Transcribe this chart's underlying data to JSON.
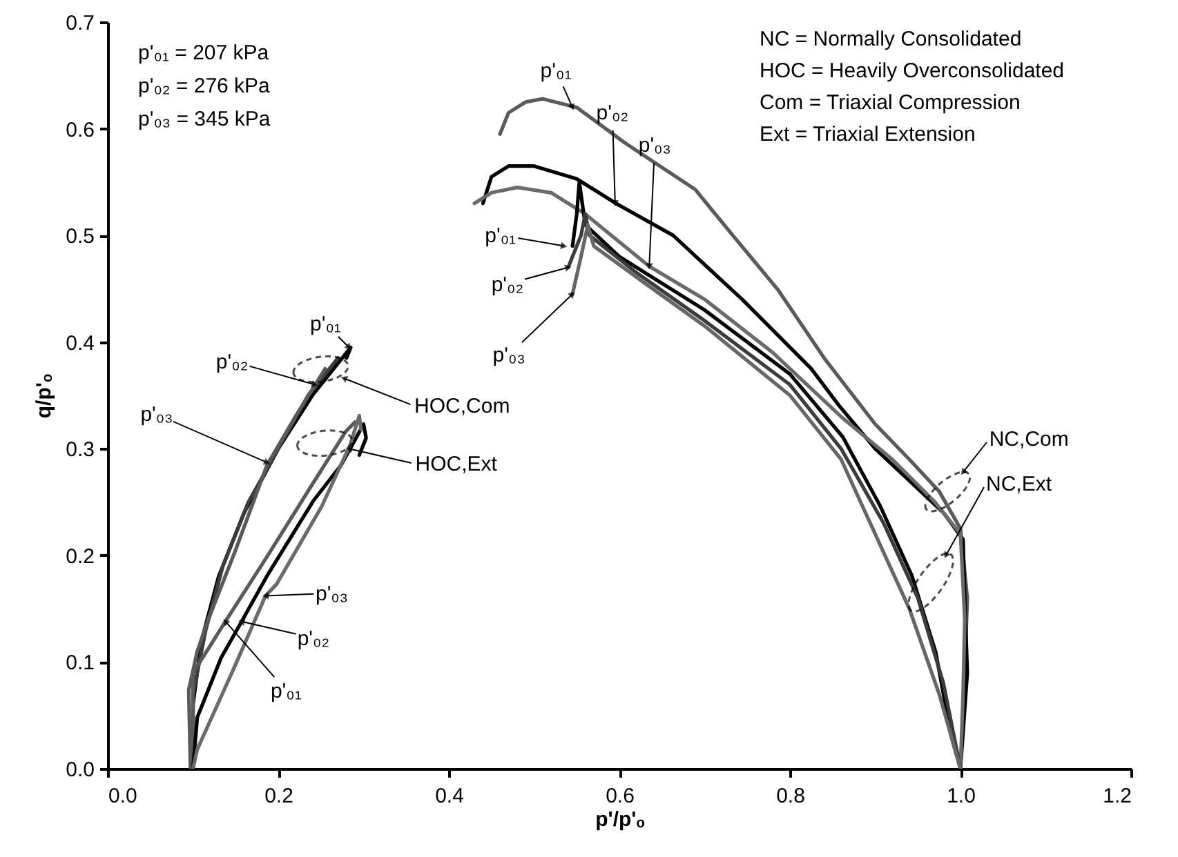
{
  "chart_data": {
    "type": "line",
    "xlabel": "p'/p'ₒ",
    "ylabel": "q/p'ₒ",
    "xlim": [
      0,
      1.2
    ],
    "ylim": [
      0,
      0.7
    ],
    "xticks": [
      {
        "value": 0,
        "label": "0.0"
      },
      {
        "value": 0.2,
        "label": "0.2"
      },
      {
        "value": 0.4,
        "label": "0.4"
      },
      {
        "value": 0.6,
        "label": "0.6"
      },
      {
        "value": 0.8,
        "label": "0.8"
      },
      {
        "value": 1,
        "label": "1.0"
      },
      {
        "value": 1.2,
        "label": "1.2"
      }
    ],
    "yticks": [
      {
        "value": 0,
        "label": "0.0"
      },
      {
        "value": 0.1,
        "label": "0.1"
      },
      {
        "value": 0.2,
        "label": "0.2"
      },
      {
        "value": 0.3,
        "label": "0.3"
      },
      {
        "value": 0.4,
        "label": "0.4"
      },
      {
        "value": 0.5,
        "label": "0.5"
      },
      {
        "value": 0.6,
        "label": "0.6"
      },
      {
        "value": 0.7,
        "label": "0.7"
      }
    ],
    "grid": false,
    "line_style": "solid",
    "series": [
      {
        "color": "#5a5a5a",
        "x": [
          0.46,
          0.47,
          0.49,
          0.51,
          0.55,
          0.606,
          0.689,
          0.733,
          0.786,
          0.841,
          0.9,
          0.94,
          0.975,
          1.0,
          1.008,
          1.005,
          1.0
        ],
        "values": [
          0.595,
          0.615,
          0.625,
          0.628,
          0.62,
          0.587,
          0.543,
          0.5,
          0.449,
          0.384,
          0.323,
          0.29,
          0.26,
          0.225,
          0.16,
          0.09,
          0.0
        ]
      },
      {
        "color": "#000000",
        "x": [
          0.44,
          0.45,
          0.47,
          0.5,
          0.55,
          0.598,
          0.663,
          0.744,
          0.825,
          0.857,
          0.9,
          0.94,
          0.98,
          1.003,
          1.005,
          1.008,
          1.0
        ],
        "values": [
          0.53,
          0.555,
          0.565,
          0.565,
          0.553,
          0.529,
          0.5,
          0.44,
          0.375,
          0.341,
          0.3,
          0.27,
          0.24,
          0.215,
          0.16,
          0.09,
          0.0
        ]
      },
      {
        "color": "#6a6a6a",
        "x": [
          0.43,
          0.45,
          0.48,
          0.52,
          0.56,
          0.635,
          0.7,
          0.78,
          0.86,
          0.92,
          0.97,
          1.0,
          1.005,
          1.003,
          1.0
        ],
        "values": [
          0.53,
          0.54,
          0.545,
          0.54,
          0.52,
          0.471,
          0.44,
          0.39,
          0.33,
          0.29,
          0.25,
          0.22,
          0.14,
          0.07,
          0.0
        ]
      },
      {
        "color": "#000000",
        "x": [
          0.545,
          0.55,
          0.553,
          0.56,
          0.6,
          0.7,
          0.8,
          0.862,
          0.906,
          0.943,
          0.971,
          0.989,
          1.0
        ],
        "values": [
          0.49,
          0.52,
          0.55,
          0.51,
          0.48,
          0.43,
          0.37,
          0.311,
          0.246,
          0.181,
          0.109,
          0.031,
          0.0
        ]
      },
      {
        "color": "#3c3c3c",
        "x": [
          0.54,
          0.555,
          0.56,
          0.565,
          0.62,
          0.7,
          0.8,
          0.86,
          0.91,
          0.95,
          0.98,
          1.0
        ],
        "values": [
          0.47,
          0.5,
          0.52,
          0.5,
          0.465,
          0.42,
          0.36,
          0.3,
          0.23,
          0.16,
          0.08,
          0.0
        ]
      },
      {
        "color": "#666666",
        "x": [
          0.545,
          0.555,
          0.563,
          0.57,
          0.63,
          0.7,
          0.8,
          0.86,
          0.9,
          0.94,
          0.975,
          1.0
        ],
        "values": [
          0.445,
          0.48,
          0.51,
          0.49,
          0.455,
          0.415,
          0.35,
          0.29,
          0.22,
          0.15,
          0.07,
          0.0
        ]
      },
      {
        "color": "#000000",
        "x": [
          0.1,
          0.1,
          0.11,
          0.13,
          0.16,
          0.2,
          0.24,
          0.285,
          0.28
        ],
        "values": [
          0.0,
          0.06,
          0.12,
          0.18,
          0.24,
          0.3,
          0.35,
          0.395,
          0.385
        ]
      },
      {
        "color": "#3c3c3c",
        "x": [
          0.1,
          0.1,
          0.115,
          0.135,
          0.165,
          0.2,
          0.235,
          0.27
        ],
        "values": [
          0.0,
          0.07,
          0.13,
          0.19,
          0.25,
          0.3,
          0.35,
          0.385
        ]
      },
      {
        "color": "#5a5a5a",
        "x": [
          0.097,
          0.095,
          0.105,
          0.117,
          0.149,
          0.187,
          0.22,
          0.255
        ],
        "values": [
          0.0,
          0.074,
          0.11,
          0.138,
          0.203,
          0.285,
          0.33,
          0.375
        ]
      },
      {
        "color": "#5a5a5a",
        "x": [
          0.1,
          0.1,
          0.12,
          0.138,
          0.187,
          0.241,
          0.279,
          0.29
        ],
        "values": [
          0.0,
          0.09,
          0.115,
          0.138,
          0.199,
          0.268,
          0.316,
          0.325
        ]
      },
      {
        "color": "#000000",
        "x": [
          0.1,
          0.105,
          0.133,
          0.157,
          0.187,
          0.241,
          0.274,
          0.3,
          0.303,
          0.295
        ],
        "values": [
          0.0,
          0.048,
          0.104,
          0.138,
          0.181,
          0.251,
          0.285,
          0.323,
          0.31,
          0.294
        ]
      },
      {
        "color": "#6a6a6a",
        "x": [
          0.1,
          0.105,
          0.149,
          0.185,
          0.198,
          0.251,
          0.284,
          0.295,
          0.297
        ],
        "values": [
          0.0,
          0.018,
          0.096,
          0.162,
          0.173,
          0.246,
          0.303,
          0.331,
          0.318
        ]
      }
    ],
    "annotations": [
      "p'₀₁ = 207 kPa",
      "p'₀₂ = 276 kPa",
      "p'₀₃ = 345 kPa",
      "NC = Normally Consolidated",
      "HOC = Heavily Overconsolidated",
      "Com = Triaxial Compression",
      "Ext = Triaxial Extension",
      {
        "text": "p'₀₁",
        "x": 0.545,
        "y": 0.62
      },
      {
        "text": "p'₀₂",
        "x": 0.595,
        "y": 0.53
      },
      {
        "text": "p'₀₃",
        "x": 0.635,
        "y": 0.471
      },
      {
        "text": "p'₀₁",
        "x": 0.535,
        "y": 0.49
      },
      {
        "text": "p'₀₂",
        "x": 0.54,
        "y": 0.47
      },
      {
        "text": "p'₀₃",
        "x": 0.545,
        "y": 0.445
      },
      {
        "text": "p'₀₁",
        "x": 0.283,
        "y": 0.395
      },
      {
        "text": "p'₀₂",
        "x": 0.243,
        "y": 0.36
      },
      {
        "text": "p'₀₃",
        "x": 0.187,
        "y": 0.287
      },
      {
        "text": "p'₀₃",
        "x": 0.185,
        "y": 0.162
      },
      {
        "text": "p'₀₂",
        "x": 0.157,
        "y": 0.138
      },
      {
        "text": "p'₀₁",
        "x": 0.138,
        "y": 0.138
      },
      {
        "text": "HOC,Com",
        "x": 0.277,
        "y": 0.366
      },
      {
        "text": "HOC,Ext",
        "x": 0.283,
        "y": 0.3
      },
      {
        "text": "NC,Com",
        "x": 1.003,
        "y": 0.278
      },
      {
        "text": "NC,Ext",
        "x": 0.983,
        "y": 0.2
      }
    ]
  }
}
